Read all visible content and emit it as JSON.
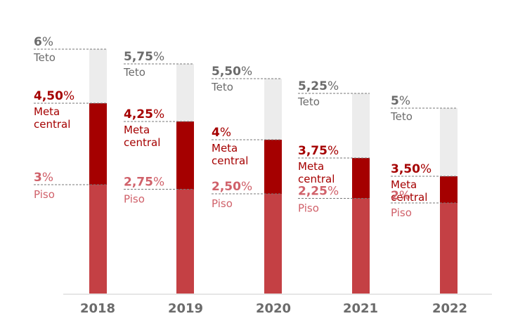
{
  "chart_data": {
    "type": "bar",
    "title": "",
    "xlabel": "",
    "ylabel": "",
    "categories": [
      "2018",
      "2019",
      "2020",
      "2021",
      "2022"
    ],
    "series": [
      {
        "name": "Teto",
        "values": [
          6,
          5.75,
          5.5,
          5.25,
          5
        ]
      },
      {
        "name": "Meta central",
        "values": [
          4.5,
          4.25,
          4,
          3.75,
          3.5
        ]
      },
      {
        "name": "Piso",
        "values": [
          3,
          2.75,
          2.5,
          2.25,
          2
        ]
      }
    ],
    "value_labels": {
      "teto": [
        "6",
        "5,75",
        "5,50",
        "5,25",
        "5"
      ],
      "meta": [
        "4,50",
        "4,25",
        "4",
        "3,75",
        "3,50"
      ],
      "piso": [
        "3",
        "2,75",
        "2,50",
        "2,25",
        "2"
      ]
    },
    "percent_sign": "%",
    "level_labels": {
      "teto": "Teto",
      "meta_line1": "Meta",
      "meta_line2": "central",
      "piso": "Piso"
    },
    "colors": {
      "teto_band": "#ececec",
      "meta_band": "#a50000",
      "piso_band": "#c44044",
      "teto_text": "#6b6b6b",
      "meta_text": "#a50000",
      "piso_text": "#d0616a",
      "year_text": "#6b6b6b",
      "axis": "#dddddd"
    },
    "grid": false,
    "legend": "none"
  }
}
